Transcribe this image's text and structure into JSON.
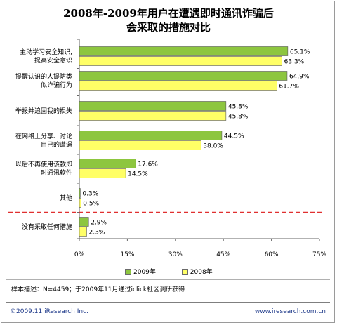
{
  "title": {
    "line1": "2008年-2009年用户在遭遇即时通讯诈骗后",
    "line2": "会采取的措施对比"
  },
  "chart_data": {
    "type": "bar",
    "orientation": "horizontal",
    "categories": [
      [
        "主动学习安全知识,",
        "提高安全意识"
      ],
      [
        "提醒认识的人提防类",
        "似诈骗行为"
      ],
      [
        "举报并追回我的损失"
      ],
      [
        "在网络上分享、讨论",
        "自己的遭遇"
      ],
      [
        "以后不再使用该款即",
        "时通讯软件"
      ],
      [
        "其他"
      ],
      [
        "没有采取任何措施"
      ]
    ],
    "series": [
      {
        "name": "2009年",
        "color": "#8dc63f",
        "values": [
          65.1,
          64.9,
          45.8,
          44.5,
          17.6,
          0.3,
          2.9
        ]
      },
      {
        "name": "2008年",
        "color": "#ffff66",
        "values": [
          63.3,
          61.7,
          45.8,
          38.0,
          14.5,
          0.5,
          2.3
        ]
      }
    ],
    "value_labels": [
      [
        "65.1%",
        "64.9%",
        "45.8%",
        "44.5%",
        "17.6%",
        "0.3%",
        "2.9%"
      ],
      [
        "63.3%",
        "61.7%",
        "45.8%",
        "38.0%",
        "14.5%",
        "0.5%",
        "2.3%"
      ]
    ],
    "xlim": [
      0,
      75
    ],
    "xticks": [
      0,
      15,
      30,
      45,
      60,
      75
    ],
    "xtick_labels": [
      "0%",
      "15%",
      "30%",
      "45%",
      "60%",
      "75%"
    ],
    "legend_position": "bottom",
    "separator_color": "#e03030"
  },
  "legend": {
    "items": [
      {
        "label": "2009年",
        "color": "#8dc63f"
      },
      {
        "label": "2008年",
        "color": "#ffff66"
      }
    ]
  },
  "source_note": "样本描述：N=4459；于2009年11月通过iclick社区调研获得",
  "footer": {
    "copyright": "©2009.11 iResearch Inc.",
    "website": "www.iresearch.com.cn"
  }
}
